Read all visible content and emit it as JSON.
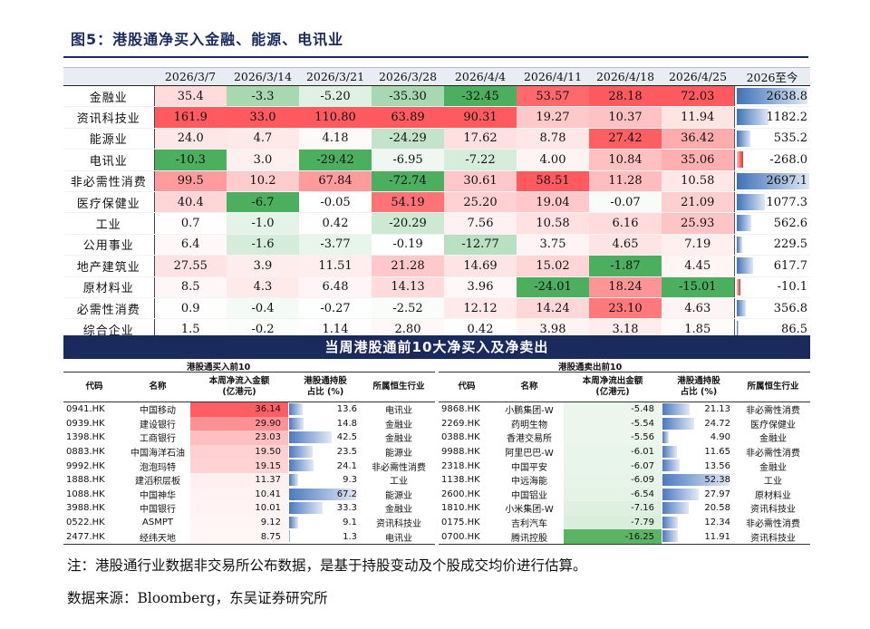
{
  "figure": {
    "title": "图5：港股通净买入金融、能源、电讯业",
    "note": "注：港股通行业数据非交易所公布数据，是基于持股变动及个股成交均价进行估算。",
    "source": "数据来源：Bloomberg，东吴证券研究所"
  },
  "colors": {
    "pos_strong": "#ef5a5f",
    "neg_strong": "#4caf5f",
    "navy": "#1b2a5c",
    "bar_blue": "#3f72b8"
  },
  "chart_data": [
    {
      "type": "table",
      "columns": [
        "2026/3/7",
        "2026/3/14",
        "2026/3/21",
        "2026/3/28",
        "2026/4/4",
        "2026/4/11",
        "2026/4/18",
        "2026/4/25",
        "2026至今"
      ],
      "ytd_max": 2697.1,
      "rows": [
        {
          "label": "金融业",
          "values": [
            "35.4",
            "-3.3",
            "-5.20",
            "-35.30",
            "-32.45",
            "53.57",
            "28.18",
            "72.03"
          ],
          "ytd": "2638.8"
        },
        {
          "label": "资讯科技业",
          "values": [
            "161.9",
            "33.0",
            "110.80",
            "63.89",
            "90.31",
            "19.27",
            "10.37",
            "11.94"
          ],
          "ytd": "1182.2"
        },
        {
          "label": "能源业",
          "values": [
            "24.0",
            "4.7",
            "4.18",
            "-24.29",
            "17.62",
            "8.78",
            "27.42",
            "36.42"
          ],
          "ytd": "535.2"
        },
        {
          "label": "电讯业",
          "values": [
            "-10.3",
            "3.0",
            "-29.42",
            "-6.95",
            "-7.22",
            "4.00",
            "10.84",
            "35.06"
          ],
          "ytd": "-268.0"
        },
        {
          "label": "非必需性消费",
          "values": [
            "99.5",
            "10.2",
            "67.84",
            "-72.74",
            "30.61",
            "58.51",
            "11.28",
            "10.58"
          ],
          "ytd": "2697.1"
        },
        {
          "label": "医疗保健业",
          "values": [
            "40.4",
            "-6.7",
            "-0.05",
            "54.19",
            "25.20",
            "19.04",
            "-0.07",
            "21.09"
          ],
          "ytd": "1077.3"
        },
        {
          "label": "工业",
          "values": [
            "0.7",
            "-1.0",
            "0.42",
            "-20.29",
            "7.56",
            "10.58",
            "6.16",
            "25.93"
          ],
          "ytd": "562.6"
        },
        {
          "label": "公用事业",
          "values": [
            "6.4",
            "-1.6",
            "-3.77",
            "-0.19",
            "-12.77",
            "3.75",
            "4.65",
            "7.19"
          ],
          "ytd": "229.5"
        },
        {
          "label": "地产建筑业",
          "values": [
            "27.55",
            "3.9",
            "11.51",
            "21.28",
            "14.69",
            "15.02",
            "-1.87",
            "4.45"
          ],
          "ytd": "617.7"
        },
        {
          "label": "原材料业",
          "values": [
            "8.5",
            "4.3",
            "6.48",
            "14.13",
            "3.96",
            "-24.01",
            "18.24",
            "-15.01"
          ],
          "ytd": "-10.1"
        },
        {
          "label": "必需性消费",
          "values": [
            "0.9",
            "-0.4",
            "-0.27",
            "-2.52",
            "12.12",
            "14.24",
            "23.10",
            "4.63"
          ],
          "ytd": "356.8"
        },
        {
          "label": "综合企业",
          "values": [
            "1.5",
            "-0.2",
            "1.14",
            "2.80",
            "0.42",
            "3.98",
            "3.18",
            "1.85"
          ],
          "ytd": "86.5"
        }
      ]
    },
    {
      "type": "table",
      "banner": "当周港股通前10大净买入及净卖出",
      "buy_title": "港股通买入前10",
      "sell_title": "港股通卖出前10",
      "buy_headers": [
        "代码",
        "名称",
        "本周净流入金额\n(亿港元)",
        "港股通持股\n占比 (%)",
        "所属恒生行业"
      ],
      "sell_headers": [
        "代码",
        "名称",
        "本周净流出金额\n(亿港元)",
        "港股通持股\n占比 (%)",
        "所属恒生行业"
      ],
      "buy": [
        {
          "code": "0941.HK",
          "name": "中国移动",
          "flow": "36.14",
          "hold": "13.6",
          "industry": "电讯业"
        },
        {
          "code": "0939.HK",
          "name": "建设银行",
          "flow": "29.90",
          "hold": "14.8",
          "industry": "金融业"
        },
        {
          "code": "1398.HK",
          "name": "工商银行",
          "flow": "23.03",
          "hold": "42.5",
          "industry": "金融业"
        },
        {
          "code": "0883.HK",
          "name": "中国海洋石油",
          "flow": "19.50",
          "hold": "23.5",
          "industry": "能源业"
        },
        {
          "code": "9992.HK",
          "name": "泡泡玛特",
          "flow": "19.15",
          "hold": "24.1",
          "industry": "非必需性消费"
        },
        {
          "code": "1888.HK",
          "name": "建滔积层板",
          "flow": "11.37",
          "hold": "9.3",
          "industry": "工业"
        },
        {
          "code": "1088.HK",
          "name": "中国神华",
          "flow": "10.41",
          "hold": "67.2",
          "industry": "能源业"
        },
        {
          "code": "3988.HK",
          "name": "中国银行",
          "flow": "10.01",
          "hold": "33.3",
          "industry": "金融业"
        },
        {
          "code": "0522.HK",
          "name": "ASMPT",
          "flow": "9.12",
          "hold": "9.1",
          "industry": "资讯科技业"
        },
        {
          "code": "2477.HK",
          "name": "经纬天地",
          "flow": "8.75",
          "hold": "1.3",
          "industry": "电讯业"
        }
      ],
      "sell": [
        {
          "code": "9868.HK",
          "name": "小鹏集团-W",
          "flow": "-5.48",
          "hold": "21.13",
          "industry": "非必需性消费"
        },
        {
          "code": "2269.HK",
          "name": "药明生物",
          "flow": "-5.54",
          "hold": "24.72",
          "industry": "医疗保健业"
        },
        {
          "code": "0388.HK",
          "name": "香港交易所",
          "flow": "-5.56",
          "hold": "4.90",
          "industry": "金融业"
        },
        {
          "code": "9988.HK",
          "name": "阿里巴巴-W",
          "flow": "-6.01",
          "hold": "11.65",
          "industry": "非必需性消费"
        },
        {
          "code": "2318.HK",
          "name": "中国平安",
          "flow": "-6.07",
          "hold": "13.56",
          "industry": "金融业"
        },
        {
          "code": "1138.HK",
          "name": "中远海能",
          "flow": "-6.09",
          "hold": "52.38",
          "industry": "工业"
        },
        {
          "code": "2600.HK",
          "name": "中国铝业",
          "flow": "-6.54",
          "hold": "27.97",
          "industry": "原材料业"
        },
        {
          "code": "1810.HK",
          "name": "小米集团-W",
          "flow": "-7.16",
          "hold": "20.58",
          "industry": "资讯科技业"
        },
        {
          "code": "0175.HK",
          "name": "吉利汽车",
          "flow": "-7.79",
          "hold": "12.34",
          "industry": "非必需性消费"
        },
        {
          "code": "0700.HK",
          "name": "腾讯控股",
          "flow": "-16.25",
          "hold": "11.91",
          "industry": "资讯科技业"
        }
      ]
    }
  ]
}
